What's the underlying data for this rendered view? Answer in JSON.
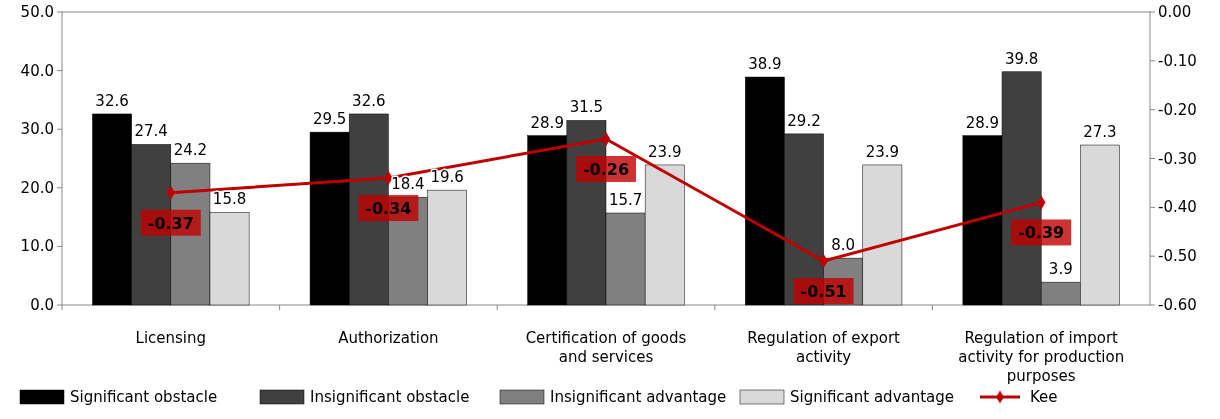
{
  "chart_data": {
    "type": "bar",
    "categories": [
      "Licensing",
      "Authorization",
      "Certification of goods and services",
      "Regulation of export activity",
      "Regulation of import activity for production purposes"
    ],
    "series": [
      {
        "name": "Significant obstacle",
        "color": "#000000",
        "values": [
          32.6,
          29.5,
          28.9,
          38.9,
          28.9
        ],
        "value_labels": [
          "32.6",
          "29.5",
          "28.9",
          "38.9",
          "28.9"
        ]
      },
      {
        "name": "Insignificant obstacle",
        "color": "#404040",
        "values": [
          27.4,
          32.6,
          31.5,
          29.2,
          39.8
        ],
        "value_labels": [
          "27.4",
          "32.6",
          "31.5",
          "29.2",
          "39.8"
        ]
      },
      {
        "name": "Insignificant advantage",
        "color": "#808080",
        "values": [
          24.2,
          18.4,
          15.7,
          8.0,
          3.9
        ],
        "value_labels": [
          "24.2",
          "18.4",
          "15.7",
          "8.0",
          "3.9"
        ]
      },
      {
        "name": "Significant advantage",
        "color": "#d9d9d9",
        "values": [
          15.8,
          19.6,
          23.9,
          23.9,
          27.3
        ],
        "value_labels": [
          "15.8",
          "19.6",
          "23.9",
          "23.9",
          "27.3"
        ]
      },
      {
        "name": "Kee",
        "type": "line",
        "axis": "y2",
        "color": "#c00000",
        "values": [
          -0.37,
          -0.34,
          -0.26,
          -0.51,
          -0.39
        ],
        "value_labels": [
          "-0.37",
          "-0.34",
          "-0.26",
          "-0.51",
          "-0.39"
        ]
      }
    ],
    "ylim": [
      0,
      50
    ],
    "yticks": [
      {
        "value": 0,
        "label": "0.0"
      },
      {
        "value": 10,
        "label": "10.0"
      },
      {
        "value": 20,
        "label": "20.0"
      },
      {
        "value": 30,
        "label": "30.0"
      },
      {
        "value": 40,
        "label": "40.0"
      },
      {
        "value": 50,
        "label": "50.0"
      }
    ],
    "y2lim": [
      -0.6,
      0
    ],
    "y2ticks": [
      {
        "value": -0.6,
        "label": "-0.60"
      },
      {
        "value": -0.5,
        "label": "-0.50"
      },
      {
        "value": -0.4,
        "label": "-0.40"
      },
      {
        "value": -0.3,
        "label": "-0.30"
      },
      {
        "value": -0.2,
        "label": "-0.20"
      },
      {
        "value": -0.1,
        "label": "-0.10"
      },
      {
        "value": 0,
        "label": "0.00"
      }
    ],
    "legend": "bottom",
    "marker": "diamond",
    "line_style": "solid",
    "grid": false
  }
}
